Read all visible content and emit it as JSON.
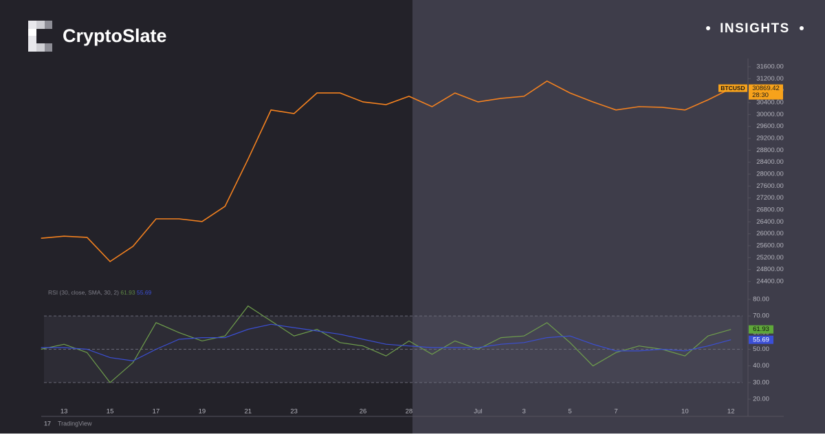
{
  "header": {
    "brand": "CryptoSlate",
    "tag": "INSIGHTS"
  },
  "chart_data": {
    "type": "line",
    "categories": [
      null,
      "13",
      null,
      "15",
      null,
      "17",
      null,
      "19",
      null,
      "21",
      null,
      "23",
      null,
      null,
      "26",
      null,
      "28",
      null,
      null,
      "Jul",
      null,
      "3",
      null,
      "5",
      null,
      "7",
      null,
      null,
      "10",
      null,
      "12"
    ],
    "series": [
      {
        "name": "BTCUSD",
        "color": "#f5821f",
        "values": [
          25850,
          25920,
          25880,
          25070,
          25580,
          26500,
          26500,
          26410,
          26920,
          28500,
          30150,
          30030,
          30720,
          30720,
          30420,
          30330,
          30610,
          30260,
          30720,
          30420,
          30540,
          30610,
          31120,
          30720,
          30420,
          30150,
          30260,
          30240,
          30150,
          30490,
          30869.42
        ]
      },
      {
        "name": "RSI (30, close, SMA, 30, 2)",
        "color": "#6f9f4c",
        "axis": "y2",
        "values": [
          50,
          53,
          48,
          30,
          42,
          66,
          60,
          55,
          58,
          76,
          67,
          58,
          62,
          54,
          52,
          46,
          55,
          47,
          55,
          50,
          57,
          58,
          66,
          54,
          40,
          48,
          52,
          50,
          46,
          58,
          61.93
        ]
      },
      {
        "color": "#3b4fd6",
        "axis": "y2",
        "values": [
          51,
          51,
          50,
          45,
          43,
          50,
          56,
          57,
          57,
          62,
          65,
          63,
          61,
          59,
          56,
          53,
          52,
          51,
          51,
          51,
          53,
          54,
          57,
          58,
          53,
          49,
          49,
          50,
          49,
          52,
          55.69
        ]
      }
    ],
    "ylim": [
      24200,
      31800
    ],
    "yticks": [
      {
        "value": 24400,
        "label": "24400.00"
      },
      {
        "value": 24800,
        "label": "24800.00"
      },
      {
        "value": 25200,
        "label": "25200.00"
      },
      {
        "value": 25600,
        "label": "25600.00"
      },
      {
        "value": 26000,
        "label": "26000.00"
      },
      {
        "value": 26400,
        "label": "26400.00"
      },
      {
        "value": 26800,
        "label": "26800.00"
      },
      {
        "value": 27200,
        "label": "27200.00"
      },
      {
        "value": 27600,
        "label": "27600.00"
      },
      {
        "value": 28000,
        "label": "28000.00"
      },
      {
        "value": 28400,
        "label": "28400.00"
      },
      {
        "value": 28800,
        "label": "28800.00"
      },
      {
        "value": 29200,
        "label": "29200.00"
      },
      {
        "value": 29600,
        "label": "29600.00"
      },
      {
        "value": 30000,
        "label": "30000.00"
      },
      {
        "value": 30400,
        "label": "30400.00"
      },
      {
        "value": 30800,
        "label": "30800.00"
      },
      {
        "value": 31200,
        "label": "31200.00"
      },
      {
        "value": 31600,
        "label": "31600.00"
      }
    ],
    "y2lim": [
      16,
      84
    ],
    "y2ticks": [
      {
        "value": 20,
        "label": "20.00"
      },
      {
        "value": 30,
        "label": "30.00"
      },
      {
        "value": 40,
        "label": "40.00"
      },
      {
        "value": 50,
        "label": "50.00"
      },
      {
        "value": 60,
        "label": "60.00"
      },
      {
        "value": 70,
        "label": "70.00"
      },
      {
        "value": 80,
        "label": "80.00"
      }
    ],
    "levels": [
      70,
      50,
      30
    ],
    "countdown": "28:30",
    "watermark": "TradingView"
  }
}
